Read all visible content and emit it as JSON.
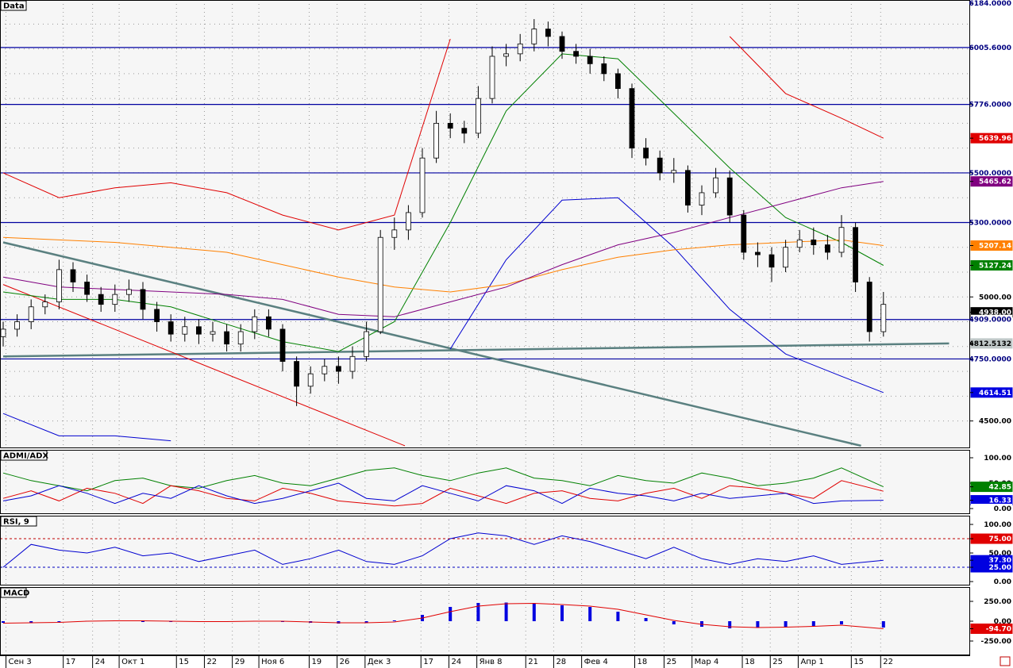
{
  "chart_data": [
    {
      "type": "candlestick",
      "title": "Data",
      "open": [
        4840,
        4870,
        4900,
        4960,
        4980,
        5110,
        5060,
        5010,
        4970,
        5010,
        5030,
        4950,
        4900,
        4850,
        4880,
        4850,
        4860,
        4810,
        4860,
        4920,
        4870,
        4740,
        4640,
        4690,
        4720,
        4700,
        4760,
        4860,
        5240,
        5270,
        5340,
        5560,
        5700,
        5680,
        5660,
        5800,
        5970,
        5980,
        6020,
        6080,
        6050,
        5990,
        5970,
        5940,
        5900,
        5840,
        5600,
        5560,
        5500,
        5510,
        5370,
        5420,
        5480,
        5330,
        5180,
        5170,
        5120,
        5200,
        5230,
        5210,
        5180,
        5280,
        5060,
        4860
      ],
      "high": [
        4900,
        4930,
        4990,
        5010,
        5150,
        5140,
        5090,
        5040,
        5050,
        5070,
        5060,
        4980,
        4930,
        4920,
        4910,
        4900,
        4890,
        4890,
        4950,
        4950,
        4890,
        4760,
        4720,
        4750,
        4760,
        4800,
        4900,
        5270,
        5320,
        5370,
        5600,
        5750,
        5740,
        5710,
        5850,
        6010,
        6020,
        6060,
        6120,
        6110,
        6070,
        6020,
        6000,
        5970,
        5920,
        5860,
        5640,
        5590,
        5560,
        5530,
        5450,
        5520,
        5510,
        5350,
        5220,
        5200,
        5230,
        5270,
        5280,
        5250,
        5330,
        5300,
        5080,
        5020
      ],
      "low": [
        4800,
        4840,
        4870,
        4930,
        4950,
        5020,
        4980,
        4940,
        4940,
        4980,
        4910,
        4860,
        4820,
        4820,
        4810,
        4820,
        4780,
        4780,
        4830,
        4840,
        4700,
        4560,
        4610,
        4660,
        4650,
        4670,
        4740,
        4850,
        5190,
        5230,
        5320,
        5540,
        5640,
        5620,
        5640,
        5780,
        5930,
        5950,
        5990,
        6010,
        5960,
        5940,
        5900,
        5870,
        5800,
        5560,
        5530,
        5470,
        5460,
        5340,
        5330,
        5400,
        5300,
        5150,
        5120,
        5060,
        5100,
        5180,
        5170,
        5150,
        5160,
        5020,
        4820,
        4840
      ],
      "close": [
        4870,
        4900,
        4960,
        4980,
        5110,
        5060,
        5010,
        4970,
        5010,
        5030,
        4950,
        4900,
        4850,
        4880,
        4850,
        4860,
        4810,
        4860,
        4920,
        4870,
        4740,
        4640,
        4690,
        4720,
        4700,
        4760,
        4860,
        5240,
        5270,
        5340,
        5560,
        5700,
        5680,
        5660,
        5800,
        5970,
        5980,
        6020,
        6080,
        6050,
        5990,
        5970,
        5940,
        5900,
        5840,
        5600,
        5560,
        5500,
        5510,
        5370,
        5420,
        5480,
        5330,
        5180,
        5170,
        5120,
        5200,
        5230,
        5210,
        5180,
        5280,
        5060,
        4860,
        4970
      ],
      "up_color": "#ffffff",
      "down_color": "#000000",
      "ylim": [
        4390,
        6197
      ],
      "grid_levels": [
        4500,
        4600,
        4700,
        4800,
        4900,
        5000,
        5100,
        5200,
        5300,
        5400,
        5500,
        5600,
        5700,
        5800,
        5900,
        6000,
        6100
      ],
      "hlines": [
        6005.6,
        5776,
        5500,
        5300,
        4909,
        4750
      ],
      "hline_color": "#0000a0",
      "overlays": [
        {
          "color": "#e00000",
          "x": [
            0,
            4,
            8,
            12,
            16,
            20,
            24,
            28,
            32,
            36,
            40,
            44,
            48,
            52,
            56,
            60,
            63
          ],
          "values": [
            5500,
            5400,
            5440,
            5460,
            5420,
            5330,
            5270,
            5330,
            6040,
            null,
            null,
            null,
            null,
            6050,
            5820,
            5720,
            5639.96
          ]
        },
        {
          "color": "#0000d0",
          "x": [
            0,
            4,
            8,
            12,
            16,
            20,
            24,
            28,
            32,
            36,
            40,
            44,
            48,
            52,
            56,
            60,
            63
          ],
          "values": [
            4530,
            4440,
            4440,
            4420,
            null,
            null,
            null,
            null,
            4790,
            5150,
            5390,
            5400,
            5200,
            4950,
            4770,
            4680,
            4614.51
          ]
        },
        {
          "color": "#008000",
          "x": [
            0,
            4,
            8,
            12,
            16,
            20,
            24,
            28,
            32,
            36,
            40,
            44,
            48,
            52,
            56,
            60,
            63
          ],
          "values": [
            5020,
            4990,
            4990,
            4960,
            4890,
            4820,
            4780,
            4900,
            5300,
            5750,
            5980,
            5960,
            5740,
            5520,
            5320,
            5220,
            5127.24
          ]
        },
        {
          "color": "#ff8000",
          "x": [
            0,
            4,
            8,
            12,
            16,
            20,
            24,
            28,
            32,
            36,
            40,
            44,
            48,
            52,
            56,
            60,
            63
          ],
          "values": [
            5240,
            5230,
            5220,
            5200,
            5180,
            5130,
            5080,
            5040,
            5020,
            5050,
            5110,
            5160,
            5190,
            5210,
            5220,
            5230,
            5207.14
          ]
        },
        {
          "color": "#800080",
          "x": [
            0,
            4,
            8,
            12,
            16,
            20,
            24,
            28,
            32,
            36,
            40,
            44,
            48,
            52,
            56,
            60,
            63
          ],
          "values": [
            5080,
            5040,
            5030,
            5020,
            5010,
            4990,
            4930,
            4920,
            4980,
            5040,
            5130,
            5210,
            5260,
            5320,
            5380,
            5440,
            5465.62
          ]
        }
      ],
      "trendlines": [
        {
          "color": "#5a8080",
          "x": [
            0,
            61.4
          ],
          "values": [
            5220,
            4400
          ]
        },
        {
          "color": "#5a8080",
          "x": [
            0,
            67.7
          ],
          "values": [
            4760,
            4812.5132
          ]
        },
        {
          "color": "#e00000",
          "x": [
            0,
            28.75
          ],
          "values": [
            5050,
            4400
          ]
        }
      ],
      "price_labels": [
        {
          "value": 6184,
          "label": "6184.0000",
          "bg": "#ffffff",
          "fg": "#000080"
        },
        {
          "value": 6005.6,
          "label": "6005.6000",
          "bg": "#ffffff",
          "fg": "#000080"
        },
        {
          "value": 5776,
          "label": "5776.0000",
          "bg": "#ffffff",
          "fg": "#000080"
        },
        {
          "value": 5639.96,
          "label": "5639.96",
          "bg": "#e00000",
          "fg": "#ffffff"
        },
        {
          "value": 5500,
          "label": "5500.0000",
          "bg": "#ffffff",
          "fg": "#000080"
        },
        {
          "value": 5465.62,
          "label": "5465.62",
          "bg": "#800080",
          "fg": "#ffffff"
        },
        {
          "value": 5300,
          "label": "5300.0000",
          "bg": "#ffffff",
          "fg": "#000080"
        },
        {
          "value": 5207.14,
          "label": "5207.14",
          "bg": "#ff8000",
          "fg": "#ffffff"
        },
        {
          "value": 5127.24,
          "label": "5127.24",
          "bg": "#008000",
          "fg": "#ffffff"
        },
        {
          "value": 5000,
          "label": "5000.00",
          "bg": "#ffffff",
          "fg": "#000000"
        },
        {
          "value": 4938,
          "label": "4938.00",
          "bg": "#000000",
          "fg": "#ffffff"
        },
        {
          "value": 4909,
          "label": "4909.0000",
          "bg": "#ffffff",
          "fg": "#000080"
        },
        {
          "value": 4812.5132,
          "label": "4812.5132",
          "bg": "#c0c8c8",
          "fg": "#000000"
        },
        {
          "value": 4750,
          "label": "4750.0000",
          "bg": "#ffffff",
          "fg": "#000080"
        },
        {
          "value": 4614.51,
          "label": "4614.51",
          "bg": "#0000e0",
          "fg": "#ffffff"
        },
        {
          "value": 4500,
          "label": "4500.00",
          "bg": "#ffffff",
          "fg": "#000000"
        }
      ],
      "xlabels": [
        {
          "value": 0.2,
          "label": "Сен 3"
        },
        {
          "value": 4.3,
          "label": "17"
        },
        {
          "value": 6.4,
          "label": "24"
        },
        {
          "value": 8.3,
          "label": "Окт 1"
        },
        {
          "value": 12.4,
          "label": "15"
        },
        {
          "value": 14.4,
          "label": "22"
        },
        {
          "value": 16.4,
          "label": "29"
        },
        {
          "value": 18.3,
          "label": "Ноя 6"
        },
        {
          "value": 21.9,
          "label": "19"
        },
        {
          "value": 23.9,
          "label": "26"
        },
        {
          "value": 25.9,
          "label": "Дек 3"
        },
        {
          "value": 29.9,
          "label": "17"
        },
        {
          "value": 31.9,
          "label": "24"
        },
        {
          "value": 33.9,
          "label": "Янв 8"
        },
        {
          "value": 37.4,
          "label": "21"
        },
        {
          "value": 39.4,
          "label": "28"
        },
        {
          "value": 41.4,
          "label": "Фев 4"
        },
        {
          "value": 45.2,
          "label": "18"
        },
        {
          "value": 47.3,
          "label": "25"
        },
        {
          "value": 49.3,
          "label": "Мар 4"
        },
        {
          "value": 52.9,
          "label": "18"
        },
        {
          "value": 54.9,
          "label": "25"
        },
        {
          "value": 56.9,
          "label": "Апр 1"
        },
        {
          "value": 60.7,
          "label": "15"
        },
        {
          "value": 62.8,
          "label": "22"
        }
      ]
    },
    {
      "type": "line",
      "title": "ADMI/ADX",
      "ylim": [
        -10.9,
        115.6
      ],
      "x": [
        0,
        2,
        4,
        6,
        8,
        10,
        12,
        14,
        16,
        18,
        20,
        22,
        24,
        26,
        28,
        30,
        32,
        34,
        36,
        38,
        40,
        42,
        44,
        46,
        48,
        50,
        52,
        54,
        56,
        58,
        60,
        63
      ],
      "series": [
        {
          "color": "#008000",
          "values": [
            70,
            55,
            45,
            35,
            55,
            60,
            45,
            40,
            55,
            65,
            50,
            45,
            60,
            75,
            80,
            65,
            55,
            70,
            80,
            60,
            55,
            45,
            65,
            55,
            50,
            70,
            60,
            45,
            50,
            60,
            80,
            42.85
          ]
        },
        {
          "color": "#e00000",
          "values": [
            20,
            35,
            15,
            40,
            30,
            10,
            45,
            35,
            20,
            15,
            40,
            30,
            15,
            10,
            5,
            10,
            40,
            25,
            10,
            30,
            35,
            20,
            15,
            30,
            40,
            20,
            45,
            40,
            30,
            20,
            55,
            34
          ]
        },
        {
          "color": "#0000d0",
          "values": [
            15,
            25,
            45,
            30,
            10,
            30,
            20,
            45,
            25,
            10,
            20,
            35,
            50,
            20,
            15,
            45,
            30,
            15,
            45,
            35,
            10,
            40,
            30,
            25,
            15,
            30,
            20,
            25,
            30,
            10,
            15,
            16.33
          ]
        }
      ],
      "levels": [],
      "yticks": [
        {
          "value": 100,
          "label": "100.00",
          "bg": "#ffffff",
          "fg": "#000000"
        },
        {
          "value": 50,
          "label": "50.00",
          "bg": "#ffffff",
          "fg": "#000000"
        },
        {
          "value": 42.85,
          "label": "42.85",
          "bg": "#008000",
          "fg": "#ffffff"
        },
        {
          "value": 16.33,
          "label": "16.33",
          "bg": "#0000e0",
          "fg": "#ffffff"
        },
        {
          "value": 0,
          "label": "0.00",
          "bg": "#ffffff",
          "fg": "#000000"
        }
      ]
    },
    {
      "type": "line",
      "title": "RSI, 9",
      "ylim": [
        -6.9,
        115.3
      ],
      "x": [
        0,
        2,
        4,
        6,
        8,
        10,
        12,
        14,
        16,
        18,
        20,
        22,
        24,
        26,
        28,
        30,
        32,
        34,
        36,
        38,
        40,
        42,
        44,
        46,
        48,
        50,
        52,
        54,
        56,
        58,
        60,
        63
      ],
      "series": [
        {
          "color": "#0000d0",
          "values": [
            25,
            65,
            55,
            50,
            60,
            45,
            50,
            35,
            45,
            55,
            30,
            40,
            55,
            35,
            30,
            45,
            75,
            85,
            80,
            65,
            80,
            70,
            55,
            40,
            60,
            40,
            30,
            40,
            35,
            45,
            30,
            37.3
          ]
        }
      ],
      "levels": [
        {
          "value": 75,
          "color": "#c00000"
        },
        {
          "value": 25,
          "color": "#0000c0"
        }
      ],
      "yticks": [
        {
          "value": 100,
          "label": "100.00",
          "bg": "#ffffff",
          "fg": "#000000"
        },
        {
          "value": 75,
          "label": "75.00",
          "bg": "#e00000",
          "fg": "#ffffff"
        },
        {
          "value": 50,
          "label": "50.00",
          "bg": "#ffffff",
          "fg": "#000000"
        },
        {
          "value": 37.3,
          "label": "37.30",
          "bg": "#0000e0",
          "fg": "#ffffff"
        },
        {
          "value": 25,
          "label": "25.00",
          "bg": "#0000e0",
          "fg": "#ffffff"
        },
        {
          "value": 0,
          "label": "0.00",
          "bg": "#ffffff",
          "fg": "#000000"
        }
      ]
    },
    {
      "type": "combo",
      "title": "MACD",
      "ylim": [
        -430,
        430
      ],
      "x": [
        0,
        2,
        4,
        6,
        8,
        10,
        12,
        14,
        16,
        18,
        20,
        22,
        24,
        26,
        28,
        30,
        32,
        34,
        36,
        38,
        40,
        42,
        44,
        46,
        48,
        50,
        52,
        54,
        56,
        58,
        60,
        63
      ],
      "histogram": {
        "color": "#0000e0",
        "values": [
          -20,
          -25,
          -10,
          5,
          10,
          0,
          -5,
          -10,
          -5,
          5,
          0,
          -20,
          -30,
          -20,
          10,
          80,
          180,
          230,
          235,
          220,
          200,
          180,
          120,
          40,
          -40,
          -70,
          -90,
          -85,
          -70,
          -60,
          -40,
          -80
        ]
      },
      "signal": {
        "color": "#e00000",
        "values": [
          -25,
          -20,
          -15,
          0,
          5,
          5,
          0,
          -5,
          -5,
          0,
          0,
          -10,
          -20,
          -20,
          -10,
          40,
          120,
          190,
          220,
          225,
          210,
          190,
          150,
          80,
          10,
          -40,
          -70,
          -80,
          -75,
          -65,
          -50,
          -94.7
        ]
      },
      "levels": [],
      "yticks": [
        {
          "value": 250,
          "label": "250.00",
          "bg": "#ffffff",
          "fg": "#000000"
        },
        {
          "value": 0,
          "label": "0.00",
          "bg": "#ffffff",
          "fg": "#000000"
        },
        {
          "value": -94.7,
          "label": "-94.70",
          "bg": "#e00000",
          "fg": "#ffffff"
        },
        {
          "value": -250,
          "label": "-250.00",
          "bg": "#ffffff",
          "fg": "#000000"
        }
      ]
    }
  ]
}
